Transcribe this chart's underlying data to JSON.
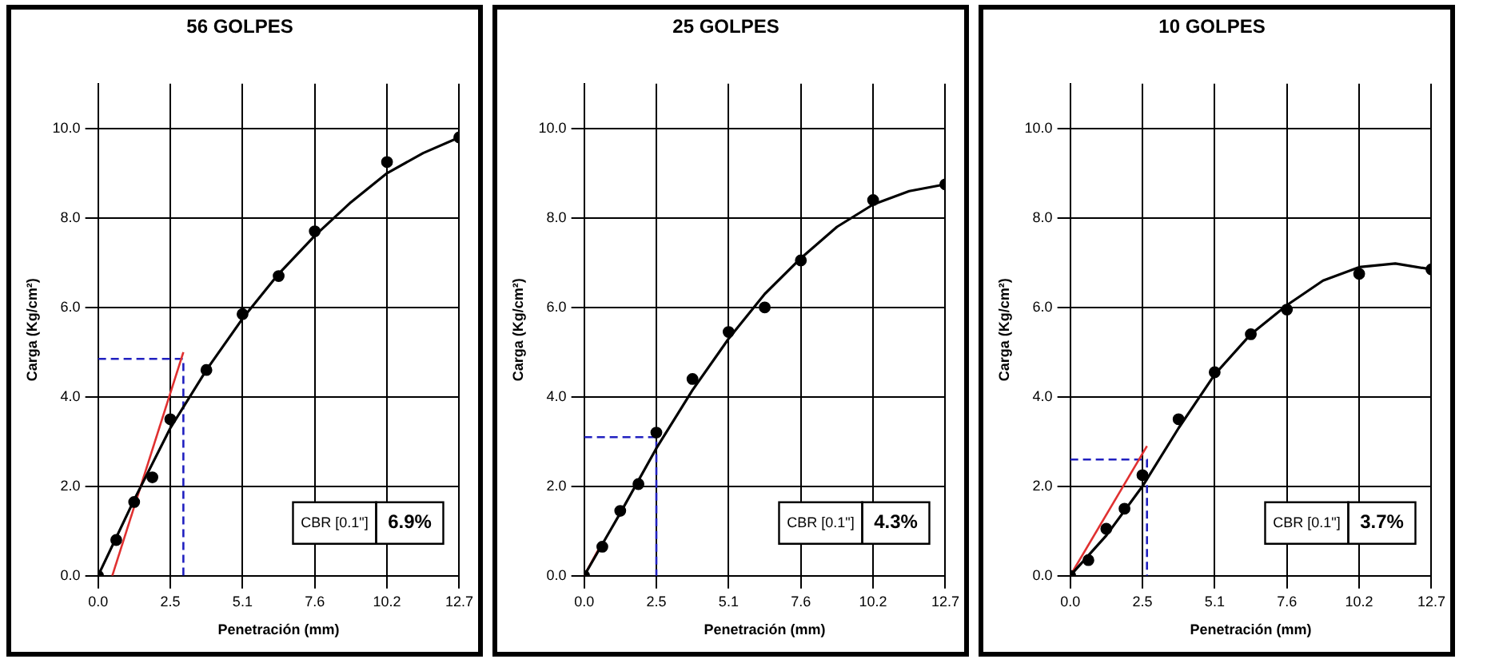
{
  "chart_data": [
    {
      "type": "scatter",
      "title": "56 GOLPES",
      "xlabel": "Penetración (mm)",
      "ylabel": "Carga (Kg/cm²)",
      "xlim": [
        0,
        12.7
      ],
      "ylim": [
        0,
        11
      ],
      "xticks": [
        {
          "value": 0,
          "label": "0.0"
        },
        {
          "value": 2.54,
          "label": "2.5"
        },
        {
          "value": 5.08,
          "label": "5.1"
        },
        {
          "value": 7.62,
          "label": "7.6"
        },
        {
          "value": 10.16,
          "label": "10.2"
        },
        {
          "value": 12.7,
          "label": "12.7"
        }
      ],
      "yticks": [
        {
          "value": 0,
          "label": "0.0"
        },
        {
          "value": 2,
          "label": "2.0"
        },
        {
          "value": 4,
          "label": "4.0"
        },
        {
          "value": 6,
          "label": "6.0"
        },
        {
          "value": 8,
          "label": "8.0"
        },
        {
          "value": 10,
          "label": "10.0"
        }
      ],
      "grid": true,
      "legend": false,
      "annotations": [
        "CBR [0.1\"]",
        "6.9%"
      ],
      "series": [
        {
          "type": "line",
          "color": "#000000",
          "marker": "none",
          "x": [
            0,
            1.27,
            2.54,
            3.81,
            5.08,
            6.35,
            7.62,
            8.89,
            10.16,
            11.43,
            12.7
          ],
          "values": [
            0,
            1.7,
            3.3,
            4.6,
            5.75,
            6.75,
            7.6,
            8.35,
            9.0,
            9.45,
            9.8
          ]
        },
        {
          "type": "line",
          "color": "#e03030",
          "marker": "none",
          "x": [
            0.5,
            3.0
          ],
          "values": [
            0,
            5.0
          ]
        },
        {
          "type": "line",
          "color": "#2020c0",
          "marker": "none",
          "line_style": "dashed",
          "x": [
            0,
            3.0,
            3.0
          ],
          "values": [
            4.85,
            4.85,
            0
          ]
        },
        {
          "type": "scatter",
          "color": "#000000",
          "marker": "circle",
          "x": [
            0,
            0.64,
            1.27,
            1.91,
            2.54,
            3.81,
            5.08,
            6.35,
            7.62,
            10.16,
            12.7
          ],
          "values": [
            0,
            0.8,
            1.65,
            2.2,
            3.5,
            4.6,
            5.85,
            6.7,
            7.7,
            9.25,
            9.8
          ]
        }
      ]
    },
    {
      "type": "scatter",
      "title": "25 GOLPES",
      "xlabel": "Penetración (mm)",
      "ylabel": "Carga (Kg/cm²)",
      "xlim": [
        0,
        12.7
      ],
      "ylim": [
        0,
        11
      ],
      "xticks": [
        {
          "value": 0,
          "label": "0.0"
        },
        {
          "value": 2.54,
          "label": "2.5"
        },
        {
          "value": 5.08,
          "label": "5.1"
        },
        {
          "value": 7.62,
          "label": "7.6"
        },
        {
          "value": 10.16,
          "label": "10.2"
        },
        {
          "value": 12.7,
          "label": "12.7"
        }
      ],
      "yticks": [
        {
          "value": 0,
          "label": "0.0"
        },
        {
          "value": 2,
          "label": "2.0"
        },
        {
          "value": 4,
          "label": "4.0"
        },
        {
          "value": 6,
          "label": "6.0"
        },
        {
          "value": 8,
          "label": "8.0"
        },
        {
          "value": 10,
          "label": "10.0"
        }
      ],
      "grid": true,
      "legend": false,
      "annotations": [
        "CBR [0.1\"]",
        "4.3%"
      ],
      "series": [
        {
          "type": "line",
          "color": "#000000",
          "marker": "none",
          "x": [
            0,
            1.27,
            2.54,
            3.81,
            5.08,
            6.35,
            7.62,
            8.89,
            10.16,
            11.43,
            12.7
          ],
          "values": [
            0,
            1.4,
            2.85,
            4.15,
            5.3,
            6.3,
            7.1,
            7.8,
            8.3,
            8.6,
            8.75
          ]
        },
        {
          "type": "line",
          "color": "#e03030",
          "marker": "none",
          "x": [
            0,
            0.6
          ],
          "values": [
            0,
            0.7
          ]
        },
        {
          "type": "line",
          "color": "#2020c0",
          "marker": "none",
          "line_style": "dashed",
          "x": [
            0,
            2.54,
            2.54
          ],
          "values": [
            3.1,
            3.1,
            0
          ]
        },
        {
          "type": "scatter",
          "color": "#000000",
          "marker": "circle",
          "x": [
            0,
            0.64,
            1.27,
            1.91,
            2.54,
            3.81,
            5.08,
            6.35,
            7.62,
            10.16,
            12.7
          ],
          "values": [
            0,
            0.65,
            1.45,
            2.05,
            3.2,
            4.4,
            5.45,
            6.0,
            7.05,
            8.4,
            8.75
          ]
        }
      ]
    },
    {
      "type": "scatter",
      "title": "10 GOLPES",
      "xlabel": "Penetración (mm)",
      "ylabel": "Carga (Kg/cm²)",
      "xlim": [
        0,
        12.7
      ],
      "ylim": [
        0,
        11
      ],
      "xticks": [
        {
          "value": 0,
          "label": "0.0"
        },
        {
          "value": 2.54,
          "label": "2.5"
        },
        {
          "value": 5.08,
          "label": "5.1"
        },
        {
          "value": 7.62,
          "label": "7.6"
        },
        {
          "value": 10.16,
          "label": "10.2"
        },
        {
          "value": 12.7,
          "label": "12.7"
        }
      ],
      "yticks": [
        {
          "value": 0,
          "label": "0.0"
        },
        {
          "value": 2,
          "label": "2.0"
        },
        {
          "value": 4,
          "label": "4.0"
        },
        {
          "value": 6,
          "label": "6.0"
        },
        {
          "value": 8,
          "label": "8.0"
        },
        {
          "value": 10,
          "label": "10.0"
        }
      ],
      "grid": true,
      "legend": false,
      "annotations": [
        "CBR [0.1\"]",
        "3.7%"
      ],
      "series": [
        {
          "type": "line",
          "color": "#000000",
          "marker": "none",
          "x": [
            0,
            1.27,
            2.54,
            3.81,
            5.08,
            6.35,
            7.62,
            8.89,
            10.16,
            11.43,
            12.7
          ],
          "values": [
            0,
            0.9,
            2.0,
            3.3,
            4.5,
            5.4,
            6.05,
            6.6,
            6.9,
            6.98,
            6.85
          ]
        },
        {
          "type": "line",
          "color": "#e03030",
          "marker": "none",
          "x": [
            0,
            2.7
          ],
          "values": [
            0,
            2.9
          ]
        },
        {
          "type": "line",
          "color": "#2020c0",
          "marker": "none",
          "line_style": "dashed",
          "x": [
            0,
            2.7,
            2.7
          ],
          "values": [
            2.6,
            2.6,
            0
          ]
        },
        {
          "type": "scatter",
          "color": "#000000",
          "marker": "circle",
          "x": [
            0,
            0.64,
            1.27,
            1.91,
            2.54,
            3.81,
            5.08,
            6.35,
            7.62,
            10.16,
            12.7
          ],
          "values": [
            0,
            0.35,
            1.05,
            1.5,
            2.25,
            3.5,
            4.55,
            5.4,
            5.95,
            6.75,
            6.85
          ]
        }
      ]
    }
  ]
}
